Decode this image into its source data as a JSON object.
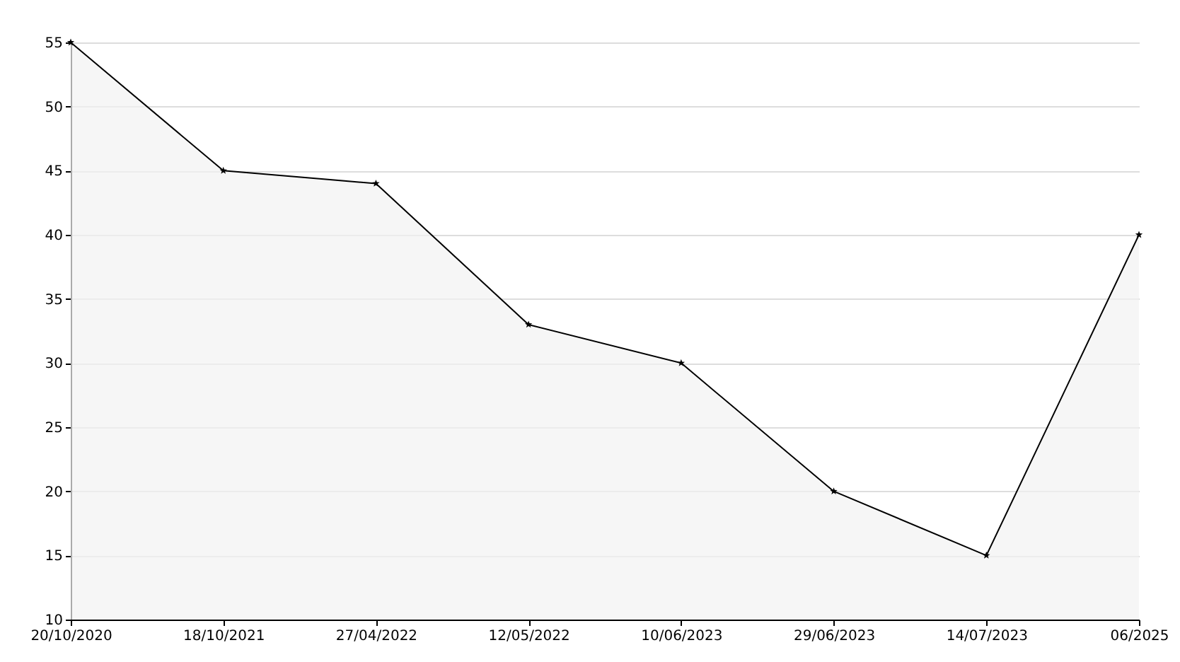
{
  "chart_data": {
    "type": "area",
    "categories": [
      "20/10/2020",
      "18/10/2021",
      "27/04/2022",
      "12/05/2022",
      "10/06/2023",
      "29/06/2023",
      "14/07/2023",
      "06/2025"
    ],
    "series": [
      {
        "color": "#000000",
        "values": [
          55,
          45,
          44,
          33,
          30,
          20,
          15,
          40
        ]
      }
    ],
    "ylim": [
      10,
      55
    ],
    "yticks": [
      10,
      15,
      20,
      25,
      30,
      35,
      40,
      45,
      50,
      55
    ],
    "grid": "y",
    "marker": "star"
  }
}
